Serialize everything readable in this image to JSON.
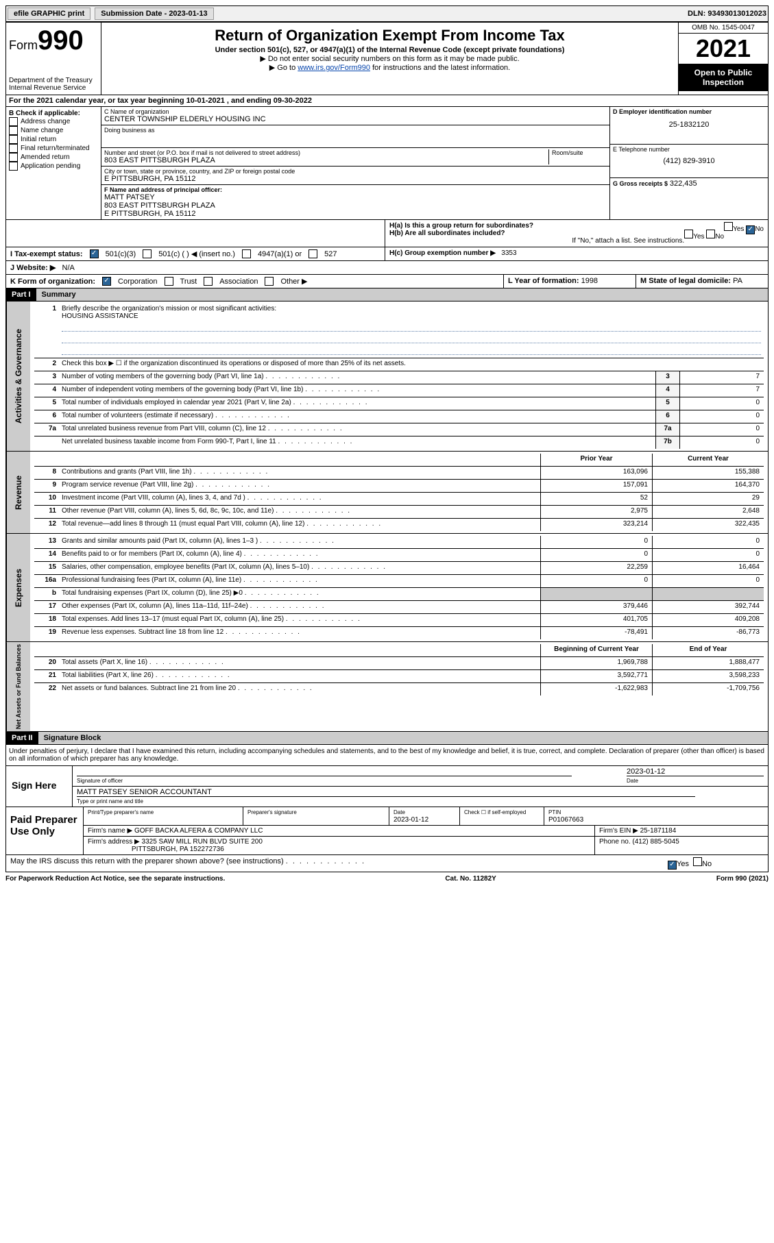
{
  "topbar": {
    "efile": "efile GRAPHIC print",
    "submission_label": "Submission Date - 2023-01-13",
    "dln_label": "DLN: 93493013012023"
  },
  "header": {
    "form_prefix": "Form",
    "form_num": "990",
    "dept": "Department of the Treasury\nInternal Revenue Service",
    "title": "Return of Organization Exempt From Income Tax",
    "subtitle": "Under section 501(c), 527, or 4947(a)(1) of the Internal Revenue Code (except private foundations)",
    "note1": "Do not enter social security numbers on this form as it may be made public.",
    "note2_pre": "Go to ",
    "note2_link": "www.irs.gov/Form990",
    "note2_post": " for instructions and the latest information.",
    "omb": "OMB No. 1545-0047",
    "year": "2021",
    "opi": "Open to Public Inspection"
  },
  "section_a": "For the 2021 calendar year, or tax year beginning 10-01-2021   , and ending 09-30-2022",
  "col_b": {
    "header": "B Check if applicable:",
    "items": [
      "Address change",
      "Name change",
      "Initial return",
      "Final return/terminated",
      "Amended return",
      "Application pending"
    ]
  },
  "col_c": {
    "name_label": "C Name of organization",
    "name": "CENTER TOWNSHIP ELDERLY HOUSING INC",
    "dba_label": "Doing business as",
    "dba": "",
    "addr_label": "Number and street (or P.O. box if mail is not delivered to street address)",
    "room_label": "Room/suite",
    "addr": "803 EAST PITTSBURGH PLAZA",
    "city_label": "City or town, state or province, country, and ZIP or foreign postal code",
    "city": "E PITTSBURGH, PA  15112",
    "f_label": "F Name and address of principal officer:",
    "f_name": "MATT PATSEY",
    "f_addr1": "803 EAST PITTSBURGH PLAZA",
    "f_addr2": "E PITTSBURGH, PA  15112"
  },
  "col_d": {
    "ein_label": "D Employer identification number",
    "ein": "25-1832120",
    "tel_label": "E Telephone number",
    "tel": "(412) 829-3910",
    "gross_label": "G Gross receipts $",
    "gross": "322,435"
  },
  "h": {
    "ha_label": "H(a)  Is this a group return for subordinates?",
    "ha_yes": "Yes",
    "ha_no": "No",
    "hb_label": "H(b)  Are all subordinates included?",
    "hb_yes": "Yes",
    "hb_no": "No",
    "hb_note": "If \"No,\" attach a list. See instructions.",
    "hc_label": "H(c)  Group exemption number ▶",
    "hc_val": "3353"
  },
  "row_i": {
    "label": "I   Tax-exempt status:",
    "opt1": "501(c)(3)",
    "opt2": "501(c) (  ) ◀ (insert no.)",
    "opt3": "4947(a)(1) or",
    "opt4": "527"
  },
  "row_j": {
    "label": "J   Website: ▶",
    "val": "N/A"
  },
  "row_k": {
    "label": "K Form of organization:",
    "opts": [
      "Corporation",
      "Trust",
      "Association",
      "Other ▶"
    ],
    "l_label": "L Year of formation:",
    "l_val": "1998",
    "m_label": "M State of legal domicile:",
    "m_val": "PA"
  },
  "part1": {
    "hdr": "Part I",
    "title": "Summary",
    "q1": "Briefly describe the organization's mission or most significant activities:",
    "q1_val": "HOUSING ASSISTANCE",
    "q2": "Check this box ▶ ☐  if the organization discontinued its operations or disposed of more than 25% of its net assets.",
    "rows_gov": [
      {
        "n": "3",
        "t": "Number of voting members of the governing body (Part VI, line 1a)",
        "box": "3",
        "v": "7"
      },
      {
        "n": "4",
        "t": "Number of independent voting members of the governing body (Part VI, line 1b)",
        "box": "4",
        "v": "7"
      },
      {
        "n": "5",
        "t": "Total number of individuals employed in calendar year 2021 (Part V, line 2a)",
        "box": "5",
        "v": "0"
      },
      {
        "n": "6",
        "t": "Total number of volunteers (estimate if necessary)",
        "box": "6",
        "v": "0"
      },
      {
        "n": "7a",
        "t": "Total unrelated business revenue from Part VIII, column (C), line 12",
        "box": "7a",
        "v": "0"
      },
      {
        "n": "",
        "t": "Net unrelated business taxable income from Form 990-T, Part I, line 11",
        "box": "7b",
        "v": "0"
      }
    ],
    "col_py": "Prior Year",
    "col_cy": "Current Year",
    "rows_rev": [
      {
        "n": "8",
        "t": "Contributions and grants (Part VIII, line 1h)",
        "py": "163,096",
        "cy": "155,388"
      },
      {
        "n": "9",
        "t": "Program service revenue (Part VIII, line 2g)",
        "py": "157,091",
        "cy": "164,370"
      },
      {
        "n": "10",
        "t": "Investment income (Part VIII, column (A), lines 3, 4, and 7d )",
        "py": "52",
        "cy": "29"
      },
      {
        "n": "11",
        "t": "Other revenue (Part VIII, column (A), lines 5, 6d, 8c, 9c, 10c, and 11e)",
        "py": "2,975",
        "cy": "2,648"
      },
      {
        "n": "12",
        "t": "Total revenue—add lines 8 through 11 (must equal Part VIII, column (A), line 12)",
        "py": "323,214",
        "cy": "322,435"
      }
    ],
    "rows_exp": [
      {
        "n": "13",
        "t": "Grants and similar amounts paid (Part IX, column (A), lines 1–3 )",
        "py": "0",
        "cy": "0"
      },
      {
        "n": "14",
        "t": "Benefits paid to or for members (Part IX, column (A), line 4)",
        "py": "0",
        "cy": "0"
      },
      {
        "n": "15",
        "t": "Salaries, other compensation, employee benefits (Part IX, column (A), lines 5–10)",
        "py": "22,259",
        "cy": "16,464"
      },
      {
        "n": "16a",
        "t": "Professional fundraising fees (Part IX, column (A), line 11e)",
        "py": "0",
        "cy": "0"
      },
      {
        "n": "b",
        "t": "Total fundraising expenses (Part IX, column (D), line 25) ▶0",
        "py": "",
        "cy": "",
        "shaded": true
      },
      {
        "n": "17",
        "t": "Other expenses (Part IX, column (A), lines 11a–11d, 11f–24e)",
        "py": "379,446",
        "cy": "392,744"
      },
      {
        "n": "18",
        "t": "Total expenses. Add lines 13–17 (must equal Part IX, column (A), line 25)",
        "py": "401,705",
        "cy": "409,208"
      },
      {
        "n": "19",
        "t": "Revenue less expenses. Subtract line 18 from line 12",
        "py": "-78,491",
        "cy": "-86,773"
      }
    ],
    "col_boy": "Beginning of Current Year",
    "col_eoy": "End of Year",
    "rows_na": [
      {
        "n": "20",
        "t": "Total assets (Part X, line 16)",
        "py": "1,969,788",
        "cy": "1,888,477"
      },
      {
        "n": "21",
        "t": "Total liabilities (Part X, line 26)",
        "py": "3,592,771",
        "cy": "3,598,233"
      },
      {
        "n": "22",
        "t": "Net assets or fund balances. Subtract line 21 from line 20",
        "py": "-1,622,983",
        "cy": "-1,709,756"
      }
    ],
    "vlab_gov": "Activities & Governance",
    "vlab_rev": "Revenue",
    "vlab_exp": "Expenses",
    "vlab_na": "Net Assets or Fund Balances"
  },
  "part2": {
    "hdr": "Part II",
    "title": "Signature Block",
    "decl": "Under penalties of perjury, I declare that I have examined this return, including accompanying schedules and statements, and to the best of my knowledge and belief, it is true, correct, and complete. Declaration of preparer (other than officer) is based on all information of which preparer has any knowledge.",
    "sign_here": "Sign Here",
    "sig_officer": "Signature of officer",
    "sig_date_label": "Date",
    "sig_date": "2023-01-12",
    "sig_name": "MATT PATSEY SENIOR ACCOUNTANT",
    "sig_name_label": "Type or print name and title",
    "paid": "Paid Preparer Use Only",
    "p_name_label": "Print/Type preparer's name",
    "p_sig_label": "Preparer's signature",
    "p_date_label": "Date",
    "p_date": "2023-01-12",
    "p_check_label": "Check ☐ if self-employed",
    "p_ptin_label": "PTIN",
    "p_ptin": "P01067663",
    "firm_name_label": "Firm's name    ▶",
    "firm_name": "GOFF BACKA ALFERA & COMPANY LLC",
    "firm_ein_label": "Firm's EIN ▶",
    "firm_ein": "25-1871184",
    "firm_addr_label": "Firm's address ▶",
    "firm_addr1": "3325 SAW MILL RUN BLVD SUITE 200",
    "firm_addr2": "PITTSBURGH, PA  152272736",
    "firm_phone_label": "Phone no.",
    "firm_phone": "(412) 885-5045",
    "discuss": "May the IRS discuss this return with the preparer shown above? (see instructions)",
    "d_yes": "Yes",
    "d_no": "No"
  },
  "footer": {
    "left": "For Paperwork Reduction Act Notice, see the separate instructions.",
    "mid": "Cat. No. 11282Y",
    "right": "Form 990 (2021)"
  }
}
